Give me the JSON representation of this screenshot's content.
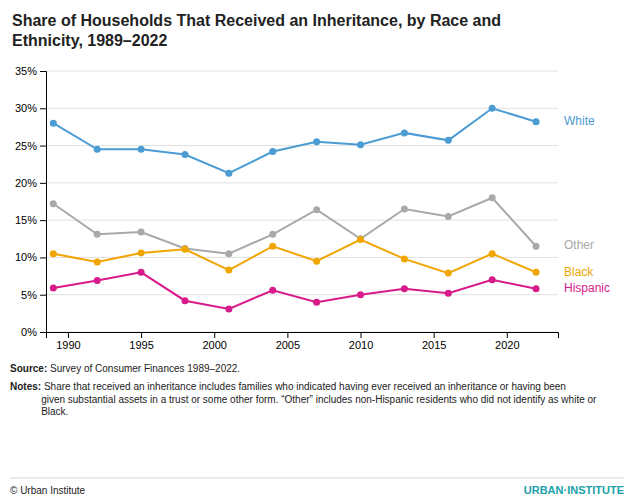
{
  "chart_data": {
    "type": "line",
    "title": "Share of Households That Received an Inheritance, by Race and\nEthnicity, 1989–2022",
    "x": [
      1989,
      1992,
      1995,
      1998,
      2001,
      2004,
      2007,
      2010,
      2013,
      2016,
      2019,
      2022
    ],
    "series": [
      {
        "name": "White",
        "color": "#4B9CD3",
        "values": [
          28.0,
          24.5,
          24.5,
          23.8,
          21.3,
          24.2,
          25.5,
          25.1,
          26.7,
          25.7,
          30.0,
          28.2
        ]
      },
      {
        "name": "Other",
        "color": "#A9A9A9",
        "values": [
          17.2,
          13.1,
          13.4,
          11.2,
          10.5,
          13.1,
          16.4,
          12.5,
          16.5,
          15.5,
          18.0,
          11.5
        ]
      },
      {
        "name": "Black",
        "color": "#F0A500",
        "values": [
          10.5,
          9.4,
          10.6,
          11.1,
          8.3,
          11.5,
          9.5,
          12.4,
          9.8,
          7.9,
          10.5,
          8.0
        ]
      },
      {
        "name": "Hispanic",
        "color": "#D81B8A",
        "values": [
          5.9,
          6.9,
          8.0,
          4.2,
          3.1,
          5.6,
          4.0,
          5.0,
          5.8,
          5.2,
          7.0,
          5.8
        ]
      }
    ],
    "marker": "circle",
    "xlim": [
      1988.5,
      2023.5
    ],
    "xticks": [
      1990,
      1995,
      2000,
      2005,
      2010,
      2015,
      2020
    ],
    "ylim": [
      0,
      35
    ],
    "yticks": [
      {
        "value": 0,
        "label": "0%"
      },
      {
        "value": 5,
        "label": "5%"
      },
      {
        "value": 10,
        "label": "10%"
      },
      {
        "value": 15,
        "label": "15%"
      },
      {
        "value": 20,
        "label": "20%"
      },
      {
        "value": 25,
        "label": "25%"
      },
      {
        "value": 30,
        "label": "30%"
      },
      {
        "value": 35,
        "label": "35%"
      }
    ],
    "grid": true,
    "source_label": "Source:",
    "source_body": " Survey of Consumer Finances 1989–2022.",
    "notes_label": "Notes:",
    "notes_body": " Share that received an inheritance includes families who indicated having ever received an inheritance or having been\ngiven substantial assets in a trust or some other form. “Other” includes non-Hispanic residents who did not identify as white or\nBlack.",
    "copyright": "© Urban Institute",
    "brand": "URBAN·INSTITUTE"
  }
}
